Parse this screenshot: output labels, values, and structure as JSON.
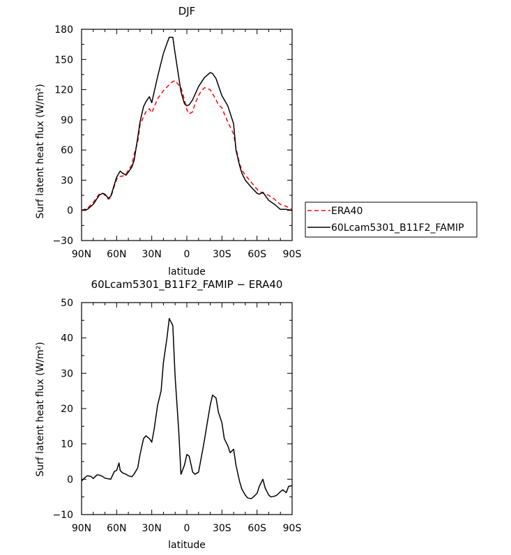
{
  "chart_data": [
    {
      "type": "line",
      "title": "DJF",
      "xlabel": "latitude",
      "ylabel": "Surf latent heat flux (W/m²)",
      "xlim": [
        90,
        -90
      ],
      "ylim": [
        -30,
        180
      ],
      "x_ticks": [
        90,
        60,
        30,
        0,
        -30,
        -60,
        -90
      ],
      "x_tick_labels": [
        "90N",
        "60N",
        "30N",
        "0",
        "30S",
        "60S",
        "90S"
      ],
      "y_ticks": [
        -30,
        0,
        30,
        60,
        90,
        120,
        150,
        180
      ],
      "y_tick_labels": [
        "−30",
        "0",
        "30",
        "60",
        "90",
        "120",
        "150",
        "180"
      ],
      "legend": "right",
      "series": [
        {
          "name": "ERA40",
          "style": "dashed",
          "color": "#ff0000",
          "x": [
            90,
            85,
            80,
            75,
            72,
            70,
            67,
            65,
            60,
            57,
            55,
            52,
            50,
            47,
            45,
            42,
            40,
            37,
            35,
            32,
            30,
            25,
            20,
            15,
            12,
            10,
            5,
            2,
            0,
            -2,
            -5,
            -7,
            -10,
            -12,
            -15,
            -20,
            -22,
            -25,
            -27,
            -30,
            -32,
            -35,
            -40,
            -42,
            -45,
            -47,
            -50,
            -55,
            -60,
            -62,
            -65,
            -70,
            -75,
            -80,
            -85,
            -90
          ],
          "y": [
            0,
            2,
            8,
            16,
            17,
            15,
            11,
            13,
            31,
            34,
            34,
            36,
            40,
            45,
            56,
            68,
            85,
            93,
            98,
            101,
            97,
            111,
            119,
            125,
            128,
            129,
            122,
            110,
            100,
            96,
            98,
            106,
            114,
            118,
            122,
            120,
            116,
            110,
            105,
            102,
            96,
            88,
            76,
            62,
            47,
            40,
            35,
            28,
            21,
            19,
            17,
            15,
            11,
            6,
            4,
            1
          ]
        },
        {
          "name": "60Lcam5301_B11F2_FAMIP",
          "style": "solid",
          "color": "#000000",
          "x": [
            90,
            85,
            80,
            75,
            72,
            70,
            67,
            65,
            60,
            57,
            55,
            52,
            50,
            47,
            45,
            42,
            40,
            37,
            35,
            32,
            30,
            25,
            20,
            17,
            15,
            12,
            10,
            5,
            2,
            0,
            -2,
            -5,
            -10,
            -15,
            -20,
            -22,
            -25,
            -27,
            -30,
            -35,
            -40,
            -42,
            -45,
            -47,
            -50,
            -55,
            -60,
            -62,
            -65,
            -70,
            -75,
            -80,
            -85,
            -90
          ],
          "y": [
            0,
            1,
            6,
            15,
            17,
            16,
            12,
            14,
            33,
            39,
            37,
            35,
            38,
            43,
            50,
            72,
            88,
            103,
            108,
            113,
            107,
            133,
            156,
            166,
            172,
            172,
            156,
            118,
            106,
            104,
            105,
            110,
            123,
            132,
            137,
            136,
            131,
            124,
            114,
            104,
            86,
            60,
            45,
            37,
            30,
            23,
            17,
            16,
            18,
            10,
            6,
            1,
            1,
            0
          ]
        }
      ]
    },
    {
      "type": "line",
      "title": "60Lcam5301_B11F2_FAMIP − ERA40",
      "xlabel": "latitude",
      "ylabel": "Surf latent heat flux (W/m²)",
      "xlim": [
        90,
        -90
      ],
      "ylim": [
        -10,
        50
      ],
      "x_ticks": [
        90,
        60,
        30,
        0,
        -30,
        -60,
        -90
      ],
      "x_tick_labels": [
        "90N",
        "60N",
        "30N",
        "0",
        "30S",
        "60S",
        "90S"
      ],
      "y_ticks": [
        -10,
        0,
        10,
        20,
        30,
        40,
        50
      ],
      "y_tick_labels": [
        "−10",
        "0",
        "10",
        "20",
        "30",
        "40",
        "50"
      ],
      "series": [
        {
          "style": "solid",
          "color": "#000000",
          "x": [
            90,
            87,
            85,
            82,
            80,
            77,
            75,
            72,
            70,
            67,
            65,
            62,
            60,
            58,
            57,
            55,
            52,
            50,
            47,
            45,
            42,
            40,
            37,
            35,
            32,
            30,
            28,
            25,
            22,
            20,
            17,
            15,
            12,
            10,
            7,
            5,
            2,
            0,
            -2,
            -5,
            -7,
            -10,
            -12,
            -15,
            -17,
            -20,
            -22,
            -25,
            -27,
            -30,
            -32,
            -35,
            -37,
            -40,
            -42,
            -45,
            -47,
            -50,
            -52,
            -55,
            -57,
            -60,
            -62,
            -65,
            -67,
            -70,
            -72,
            -75,
            -77,
            -80,
            -82,
            -85,
            -87,
            -90
          ],
          "y": [
            -0.5,
            0.5,
            1,
            0.8,
            0.2,
            1.2,
            1.2,
            0.8,
            0.3,
            0.1,
            0,
            2.2,
            2.5,
            4.6,
            2.5,
            1.8,
            1.4,
            1.0,
            0.7,
            1.5,
            3.2,
            7,
            11.5,
            12.3,
            11.5,
            10.5,
            14,
            21,
            25,
            33,
            40,
            45.5,
            43.5,
            29,
            14,
            1.4,
            4.0,
            7.0,
            6.5,
            2,
            1.4,
            2.0,
            5.5,
            11,
            15,
            21,
            23.8,
            23,
            19,
            16,
            11.5,
            9.5,
            7.5,
            8.5,
            4,
            -0.5,
            -2.8,
            -4.5,
            -5.3,
            -5.5,
            -5,
            -4,
            -2,
            0,
            -2.5,
            -4.5,
            -5,
            -4.8,
            -4.5,
            -3.5,
            -3.0,
            -3.8,
            -2,
            -1.8
          ]
        }
      ]
    }
  ]
}
